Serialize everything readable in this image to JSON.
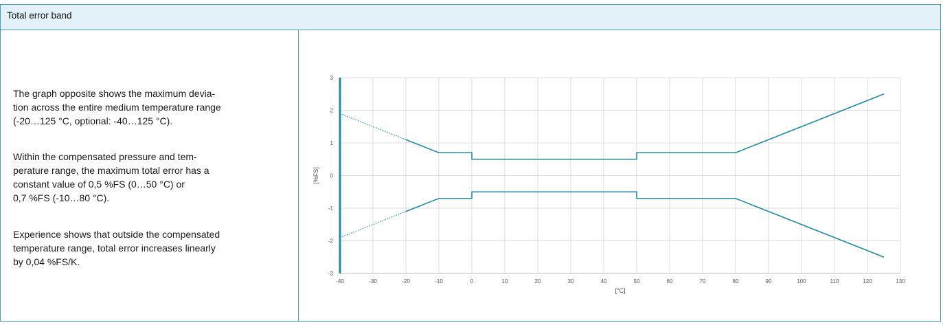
{
  "panel": {
    "title": "Total error band",
    "paragraphs": [
      [
        "The graph opposite shows the maximum devia-",
        "tion across the entire medium temperature range",
        "(-20…125 °C, optional: -40…125 °C)."
      ],
      [
        "Within the compensated pressure and tem-",
        "perature range, the maximum total error has a",
        "constant value of 0,5 %FS (0…50 °C) or",
        "0,7 %FS (-10…80 °C)."
      ],
      [
        "Experience shows that outside the compensated",
        "temperature range, total error increases linearly",
        "by 0,04 %FS/K."
      ]
    ]
  },
  "chart_data": {
    "type": "line",
    "title": "",
    "xlabel": "[°C]",
    "ylabel": "[%FS]",
    "xlim": [
      -40,
      130
    ],
    "ylim": [
      -3,
      3
    ],
    "xticks": [
      -40,
      -30,
      -20,
      -10,
      0,
      10,
      20,
      30,
      40,
      50,
      60,
      70,
      80,
      90,
      100,
      110,
      120,
      130
    ],
    "yticks": [
      3,
      2,
      1,
      0,
      -1,
      -2,
      -3
    ],
    "grid": true,
    "color": "#1f8aa6",
    "series": [
      {
        "points": [
          [
            -20,
            1.1
          ],
          [
            -10,
            0.7
          ],
          [
            0,
            0.7
          ],
          [
            0,
            0.5
          ],
          [
            50,
            0.5
          ],
          [
            50,
            0.7
          ],
          [
            80,
            0.7
          ],
          [
            125,
            2.5
          ]
        ],
        "dotted_extension": [
          [
            -40,
            1.9
          ],
          [
            -20,
            1.1
          ]
        ]
      },
      {
        "points": [
          [
            -20,
            -1.1
          ],
          [
            -10,
            -0.7
          ],
          [
            0,
            -0.7
          ],
          [
            0,
            -0.5
          ],
          [
            50,
            -0.5
          ],
          [
            50,
            -0.7
          ],
          [
            80,
            -0.7
          ],
          [
            125,
            -2.5
          ]
        ],
        "dotted_extension": [
          [
            -40,
            -1.9
          ],
          [
            -20,
            -1.1
          ]
        ]
      }
    ]
  }
}
